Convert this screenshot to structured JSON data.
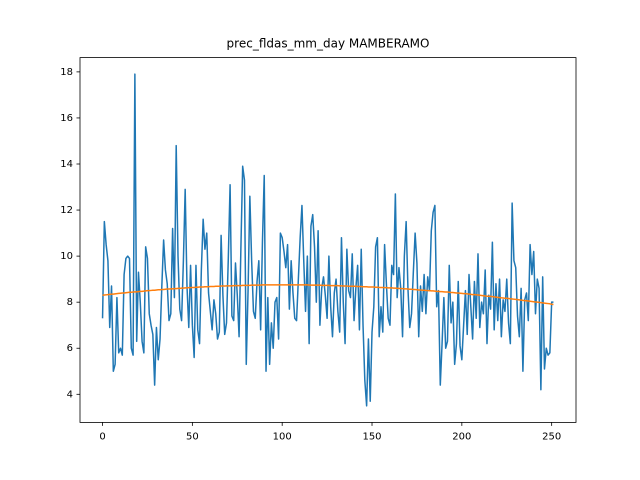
{
  "chart_data": {
    "type": "line",
    "title": "prec_fldas_mm_day MAMBERAMO",
    "x": [
      0,
      1,
      2,
      3,
      4,
      5,
      6,
      7,
      8,
      9,
      10,
      11,
      12,
      13,
      14,
      15,
      16,
      17,
      18,
      19,
      20,
      21,
      22,
      23,
      24,
      25,
      26,
      27,
      28,
      29,
      30,
      31,
      32,
      33,
      34,
      35,
      36,
      37,
      38,
      39,
      40,
      41,
      42,
      43,
      44,
      45,
      46,
      47,
      48,
      49,
      50,
      51,
      52,
      53,
      54,
      55,
      56,
      57,
      58,
      59,
      60,
      61,
      62,
      63,
      64,
      65,
      66,
      67,
      68,
      69,
      70,
      71,
      72,
      73,
      74,
      75,
      76,
      77,
      78,
      79,
      80,
      81,
      82,
      83,
      84,
      85,
      86,
      87,
      88,
      89,
      90,
      91,
      92,
      93,
      94,
      95,
      96,
      97,
      98,
      99,
      100,
      101,
      102,
      103,
      104,
      105,
      106,
      107,
      108,
      109,
      110,
      111,
      112,
      113,
      114,
      115,
      116,
      117,
      118,
      119,
      120,
      121,
      122,
      123,
      124,
      125,
      126,
      127,
      128,
      129,
      130,
      131,
      132,
      133,
      134,
      135,
      136,
      137,
      138,
      139,
      140,
      141,
      142,
      143,
      144,
      145,
      146,
      147,
      148,
      149,
      150,
      151,
      152,
      153,
      154,
      155,
      156,
      157,
      158,
      159,
      160,
      161,
      162,
      163,
      164,
      165,
      166,
      167,
      168,
      169,
      170,
      171,
      172,
      173,
      174,
      175,
      176,
      177,
      178,
      179,
      180,
      181,
      182,
      183,
      184,
      185,
      186,
      187,
      188,
      189,
      190,
      191,
      192,
      193,
      194,
      195,
      196,
      197,
      198,
      199,
      200,
      201,
      202,
      203,
      204,
      205,
      206,
      207,
      208,
      209,
      210,
      211,
      212,
      213,
      214,
      215,
      216,
      217,
      218,
      219,
      220,
      221,
      222,
      223,
      224,
      225,
      226,
      227,
      228,
      229,
      230,
      231,
      232,
      233,
      234,
      235,
      236,
      237,
      238,
      239,
      240,
      241,
      242,
      243,
      244,
      245,
      246,
      247,
      248,
      249,
      250,
      251
    ],
    "series": [
      {
        "color": "#1f77b4",
        "values": [
          7.3,
          11.5,
          10.5,
          9.8,
          6.9,
          8.7,
          5.0,
          5.3,
          8.2,
          5.8,
          6.0,
          5.7,
          9.2,
          9.9,
          10.0,
          9.9,
          6.0,
          5.7,
          17.9,
          6.3,
          9.3,
          8.0,
          6.3,
          5.8,
          10.4,
          9.9,
          7.5,
          7.0,
          6.6,
          4.4,
          6.9,
          5.5,
          6.4,
          8.7,
          10.7,
          9.4,
          8.8,
          7.2,
          7.5,
          11.2,
          8.2,
          14.8,
          10.0,
          7.7,
          7.2,
          9.8,
          12.9,
          8.7,
          6.9,
          9.6,
          7.0,
          5.6,
          9.6,
          6.8,
          6.2,
          9.4,
          11.6,
          10.3,
          11.0,
          8.4,
          7.6,
          6.8,
          8.1,
          7.5,
          6.4,
          6.7,
          10.9,
          8.3,
          6.6,
          7.1,
          9.9,
          13.1,
          7.4,
          7.2,
          9.7,
          8.3,
          6.5,
          10.3,
          13.9,
          13.3,
          5.3,
          8.5,
          12.6,
          9.8,
          7.6,
          7.3,
          8.9,
          9.8,
          6.8,
          10.6,
          13.5,
          5.0,
          8.2,
          5.3,
          7.1,
          6.0,
          8.0,
          8.2,
          6.4,
          11.0,
          10.8,
          10.2,
          9.5,
          10.5,
          7.7,
          9.8,
          8.4,
          7.3,
          7.2,
          9.0,
          10.8,
          12.2,
          9.8,
          7.6,
          10.0,
          6.2,
          11.3,
          11.8,
          10.4,
          8.0,
          11.1,
          7.0,
          8.6,
          9.1,
          8.3,
          7.3,
          10.0,
          7.8,
          6.5,
          8.4,
          9.0,
          7.6,
          6.7,
          10.8,
          8.0,
          6.2,
          10.3,
          8.5,
          8.2,
          10.1,
          7.2,
          8.6,
          9.6,
          6.8,
          10.3,
          7.0,
          4.6,
          3.5,
          6.4,
          3.7,
          6.7,
          7.8,
          10.4,
          10.8,
          6.5,
          7.8,
          6.7,
          10.5,
          8.8,
          7.3,
          7.0,
          9.6,
          9.2,
          12.7,
          8.2,
          9.5,
          8.6,
          6.5,
          10.0,
          11.5,
          8.6,
          6.9,
          7.5,
          9.3,
          11.0,
          9.7,
          6.5,
          8.7,
          7.6,
          9.2,
          7.5,
          9.1,
          8.5,
          11.1,
          11.9,
          12.2,
          7.8,
          8.5,
          4.4,
          6.2,
          8.2,
          6.0,
          6.3,
          9.6,
          7.1,
          8.0,
          5.3,
          6.2,
          8.9,
          6.1,
          5.5,
          7.0,
          8.5,
          6.6,
          9.2,
          7.8,
          6.4,
          8.9,
          7.3,
          10.1,
          6.9,
          8.0,
          7.5,
          9.4,
          6.2,
          8.3,
          7.7,
          10.6,
          6.8,
          8.8,
          7.2,
          9.0,
          6.5,
          8.1,
          7.6,
          9.0,
          7.1,
          6.2,
          12.3,
          9.8,
          9.5,
          7.4,
          6.5,
          8.6,
          5.0,
          8.1,
          8.4,
          7.2,
          10.5,
          9.2,
          10.2,
          7.5,
          9.0,
          8.6,
          4.2,
          9.1,
          5.1,
          6.0,
          5.7,
          5.8,
          8.0,
          8.0
        ]
      },
      {
        "color": "#ff7f0e",
        "values": [
          8.3,
          8.31,
          8.32,
          8.33,
          8.34,
          8.35,
          8.35,
          8.36,
          8.37,
          8.38,
          8.39,
          8.4,
          8.4,
          8.41,
          8.42,
          8.43,
          8.43,
          8.44,
          8.45,
          8.45,
          8.46,
          8.47,
          8.47,
          8.48,
          8.49,
          8.5,
          8.5,
          8.51,
          8.52,
          8.52,
          8.53,
          8.54,
          8.54,
          8.55,
          8.55,
          8.56,
          8.57,
          8.57,
          8.58,
          8.58,
          8.59,
          8.59,
          8.6,
          8.6,
          8.61,
          8.61,
          8.62,
          8.62,
          8.63,
          8.63,
          8.64,
          8.64,
          8.65,
          8.65,
          8.66,
          8.66,
          8.66,
          8.67,
          8.67,
          8.67,
          8.68,
          8.68,
          8.68,
          8.69,
          8.69,
          8.69,
          8.7,
          8.7,
          8.7,
          8.71,
          8.71,
          8.71,
          8.71,
          8.72,
          8.72,
          8.72,
          8.72,
          8.72,
          8.73,
          8.73,
          8.73,
          8.73,
          8.73,
          8.74,
          8.74,
          8.74,
          8.74,
          8.74,
          8.74,
          8.75,
          8.75,
          8.75,
          8.75,
          8.75,
          8.75,
          8.75,
          8.75,
          8.75,
          8.75,
          8.75,
          8.75,
          8.75,
          8.75,
          8.75,
          8.75,
          8.75,
          8.75,
          8.75,
          8.75,
          8.75,
          8.75,
          8.75,
          8.75,
          8.75,
          8.75,
          8.74,
          8.74,
          8.74,
          8.74,
          8.74,
          8.74,
          8.74,
          8.73,
          8.73,
          8.73,
          8.73,
          8.73,
          8.72,
          8.72,
          8.72,
          8.72,
          8.72,
          8.71,
          8.71,
          8.7,
          8.7,
          8.7,
          8.69,
          8.69,
          8.69,
          8.69,
          8.69,
          8.68,
          8.68,
          8.68,
          8.67,
          8.67,
          8.67,
          8.66,
          8.66,
          8.66,
          8.66,
          8.65,
          8.65,
          8.64,
          8.64,
          8.64,
          8.63,
          8.63,
          8.62,
          8.62,
          8.62,
          8.61,
          8.61,
          8.6,
          8.6,
          8.59,
          8.59,
          8.58,
          8.58,
          8.57,
          8.56,
          8.56,
          8.55,
          8.55,
          8.54,
          8.53,
          8.53,
          8.52,
          8.52,
          8.51,
          8.5,
          8.5,
          8.49,
          8.49,
          8.48,
          8.47,
          8.47,
          8.46,
          8.46,
          8.45,
          8.44,
          8.44,
          8.43,
          8.42,
          8.42,
          8.41,
          8.4,
          8.4,
          8.39,
          8.38,
          8.37,
          8.37,
          8.36,
          8.35,
          8.34,
          8.33,
          8.33,
          8.32,
          8.31,
          8.3,
          8.29,
          8.28,
          8.27,
          8.26,
          8.26,
          8.25,
          8.24,
          8.23,
          8.22,
          8.21,
          8.2,
          8.19,
          8.18,
          8.17,
          8.17,
          8.16,
          8.15,
          8.14,
          8.13,
          8.12,
          8.11,
          8.1,
          8.09,
          8.08,
          8.07,
          8.06,
          8.05,
          8.04,
          8.03,
          8.02,
          8.01,
          8.0,
          7.99,
          7.98,
          7.97,
          7.96,
          7.95,
          7.94,
          7.93,
          7.91,
          7.9
        ]
      }
    ],
    "xlim": [
      -12.55,
      263.55
    ],
    "xticks": [
      0,
      50,
      100,
      150,
      200,
      250
    ],
    "ylim": [
      2.78,
      18.62
    ],
    "yticks": [
      4,
      6,
      8,
      10,
      12,
      14,
      16,
      18
    ]
  }
}
